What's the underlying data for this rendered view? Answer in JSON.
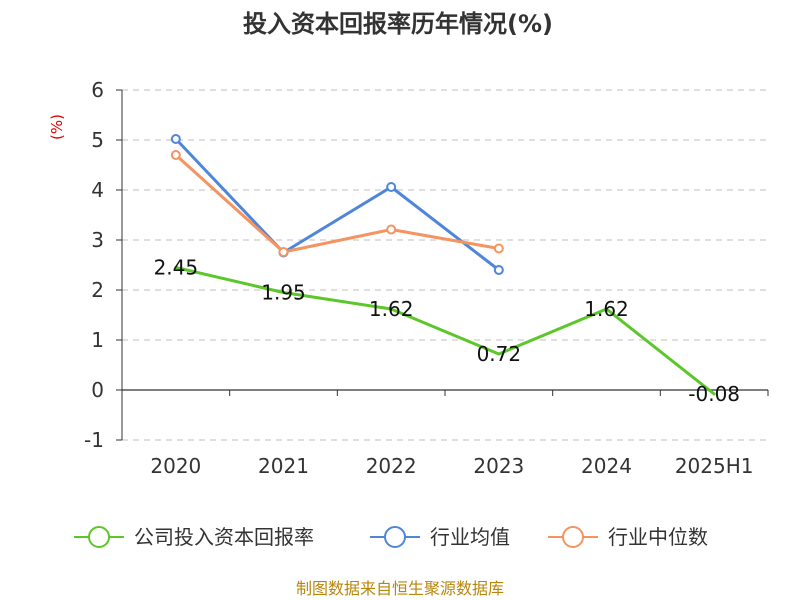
{
  "chart_data": {
    "type": "line",
    "title": "投入资本回报率历年情况(%)",
    "ylabel": "(%)",
    "categories": [
      "2020",
      "2021",
      "2022",
      "2023",
      "2024",
      "2025H1"
    ],
    "ylim": [
      -1,
      6
    ],
    "yticks": [
      "-1",
      "0",
      "1",
      "2",
      "3",
      "4",
      "5",
      "6"
    ],
    "grid": true,
    "legend_position": "bottom",
    "series": [
      {
        "name": "公司投入资本回报率",
        "color": "#5cc72a",
        "values": [
          2.45,
          1.95,
          1.62,
          0.72,
          1.62,
          -0.08
        ],
        "labels": [
          "2.45",
          "1.95",
          "1.62",
          "0.72",
          "1.62",
          "-0.08"
        ]
      },
      {
        "name": "行业均值",
        "color": "#4f86d9",
        "values": [
          5.02,
          2.75,
          4.06,
          2.4,
          null,
          null
        ]
      },
      {
        "name": "行业中位数",
        "color": "#f59361",
        "values": [
          4.7,
          2.76,
          3.21,
          2.83,
          null,
          null
        ]
      }
    ]
  },
  "source": "制图数据来自恒生聚源数据库"
}
